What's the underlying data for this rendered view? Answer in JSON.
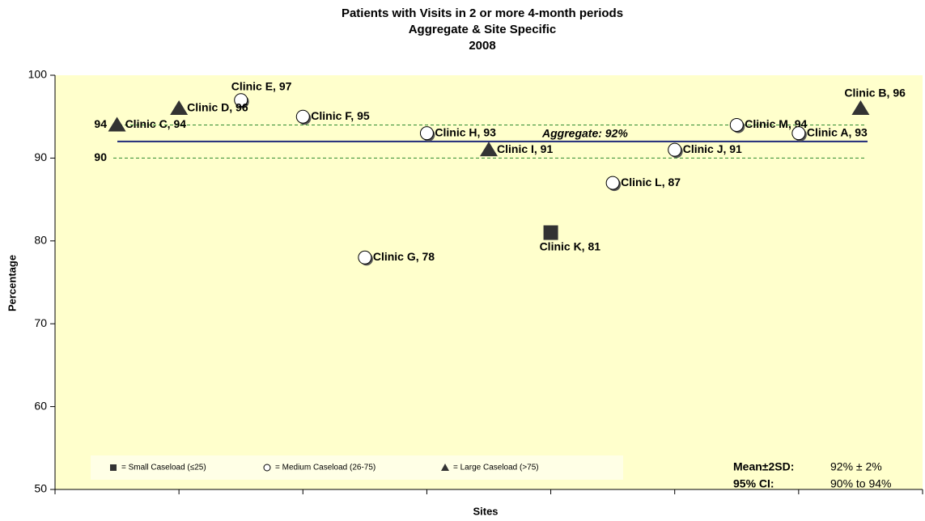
{
  "chart_data": {
    "type": "scatter",
    "title_lines": [
      "Patients with Visits in 2 or more 4-month periods",
      "Aggregate & Site Specific",
      "2008"
    ],
    "xlabel": "Sites",
    "ylabel": "Percentage",
    "xlim": [
      0,
      14
    ],
    "xticks": [
      0,
      2,
      4,
      6,
      8,
      10,
      12,
      14
    ],
    "ylim": [
      50,
      100
    ],
    "yticks": [
      50,
      60,
      70,
      80,
      90,
      100
    ],
    "series": [
      {
        "name": "= Small Caseload (≤25)",
        "marker": "square",
        "color": "#333333",
        "x": [
          8
        ],
        "values": [
          81
        ],
        "labels": [
          "Clinic K, 81"
        ]
      },
      {
        "name": "= Medium Caseload (26-75)",
        "marker": "circle",
        "color": "#ffffff",
        "x": [
          3,
          4,
          5,
          6,
          9,
          10,
          11,
          12
        ],
        "values": [
          97,
          95,
          78,
          93,
          87,
          91,
          94,
          93
        ],
        "labels": [
          "Clinic E, 97",
          "Clinic F, 95",
          "Clinic G, 78",
          "Clinic H, 93",
          "Clinic L, 87",
          "Clinic J, 91",
          "Clinic M, 94",
          "Clinic A, 93"
        ]
      },
      {
        "name": "= Large Caseload (>75)",
        "marker": "triangle",
        "color": "#333333",
        "x": [
          1,
          2,
          7,
          13
        ],
        "values": [
          94,
          96,
          91,
          96
        ],
        "labels": [
          "Clinic C, 94",
          "Clinic D, 96",
          "Clinic I, 91",
          "Clinic B, 96"
        ]
      }
    ],
    "reference_lines": [
      {
        "value": 92,
        "label": "Aggregate: 92%",
        "color": "#1f2a7a",
        "style": "solid"
      },
      {
        "value": 94,
        "color": "#2e8b2e",
        "style": "dashed"
      },
      {
        "value": 90,
        "color": "#2e8b2e",
        "style": "dashed"
      }
    ],
    "annotations": [
      {
        "label": "Mean±2SD:",
        "text": "92% ± 2%"
      },
      {
        "label": "95% CI:",
        "text": "90% to 94%"
      }
    ],
    "background": "#ffffcc"
  }
}
